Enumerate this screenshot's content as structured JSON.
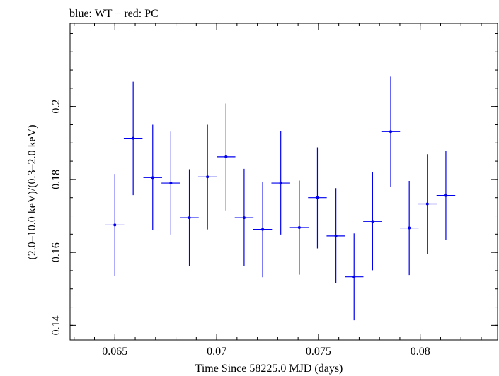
{
  "chart_data": {
    "type": "scatter",
    "title": "blue: WT − red: PC",
    "xlabel": "Time Since 58225.0 MJD (days)",
    "ylabel": "(2.0–10.0 keV)/(0.3–2.0 keV)",
    "xlim": [
      0.0628,
      0.0838
    ],
    "ylim": [
      0.136,
      0.2228
    ],
    "x_ticks": [
      {
        "value": 0.065,
        "label": "0.065"
      },
      {
        "value": 0.07,
        "label": "0.07"
      },
      {
        "value": 0.075,
        "label": "0.075"
      },
      {
        "value": 0.08,
        "label": "0.08"
      }
    ],
    "y_ticks": [
      {
        "value": 0.14,
        "label": "0.14"
      },
      {
        "value": 0.16,
        "label": "0.16"
      },
      {
        "value": 0.18,
        "label": "0.18"
      },
      {
        "value": 0.2,
        "label": "0.2"
      }
    ],
    "series": [
      {
        "color": "#0000ee",
        "points": [
          {
            "x": 0.065,
            "xerr": 0.00046,
            "y": 0.1675,
            "ylo": 0.1535,
            "yhi": 0.1815
          },
          {
            "x": 0.0659,
            "xerr": 0.00046,
            "y": 0.1913,
            "ylo": 0.1757,
            "yhi": 0.2068
          },
          {
            "x": 0.06686,
            "xerr": 0.00046,
            "y": 0.1805,
            "ylo": 0.1661,
            "yhi": 0.195
          },
          {
            "x": 0.06775,
            "xerr": 0.00046,
            "y": 0.179,
            "ylo": 0.1649,
            "yhi": 0.1931
          },
          {
            "x": 0.06866,
            "xerr": 0.00046,
            "y": 0.1695,
            "ylo": 0.1563,
            "yhi": 0.1828
          },
          {
            "x": 0.06955,
            "xerr": 0.00046,
            "y": 0.1807,
            "ylo": 0.1663,
            "yhi": 0.195
          },
          {
            "x": 0.07046,
            "xerr": 0.00046,
            "y": 0.1862,
            "ylo": 0.1715,
            "yhi": 0.2008
          },
          {
            "x": 0.07135,
            "xerr": 0.00046,
            "y": 0.1695,
            "ylo": 0.1563,
            "yhi": 0.1829
          },
          {
            "x": 0.07226,
            "xerr": 0.00046,
            "y": 0.1663,
            "ylo": 0.1532,
            "yhi": 0.1793
          },
          {
            "x": 0.07315,
            "xerr": 0.00046,
            "y": 0.179,
            "ylo": 0.1649,
            "yhi": 0.1932
          },
          {
            "x": 0.07406,
            "xerr": 0.00046,
            "y": 0.1668,
            "ylo": 0.1539,
            "yhi": 0.1797
          },
          {
            "x": 0.07495,
            "xerr": 0.00046,
            "y": 0.175,
            "ylo": 0.1611,
            "yhi": 0.1888
          },
          {
            "x": 0.07586,
            "xerr": 0.00046,
            "y": 0.1645,
            "ylo": 0.1515,
            "yhi": 0.1776
          },
          {
            "x": 0.07675,
            "xerr": 0.00046,
            "y": 0.1533,
            "ylo": 0.1414,
            "yhi": 0.1652
          },
          {
            "x": 0.07766,
            "xerr": 0.00046,
            "y": 0.1685,
            "ylo": 0.1551,
            "yhi": 0.182
          },
          {
            "x": 0.07855,
            "xerr": 0.00046,
            "y": 0.1931,
            "ylo": 0.1779,
            "yhi": 0.2082
          },
          {
            "x": 0.07946,
            "xerr": 0.00046,
            "y": 0.1667,
            "ylo": 0.1538,
            "yhi": 0.1796
          },
          {
            "x": 0.08035,
            "xerr": 0.00046,
            "y": 0.1733,
            "ylo": 0.1596,
            "yhi": 0.1869
          },
          {
            "x": 0.08126,
            "xerr": 0.00046,
            "y": 0.1756,
            "ylo": 0.1635,
            "yhi": 0.1878
          }
        ]
      }
    ]
  }
}
